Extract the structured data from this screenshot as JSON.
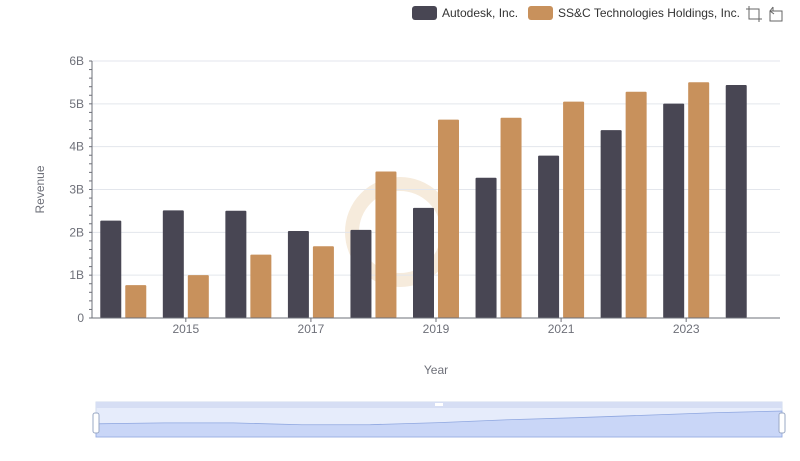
{
  "chart_data": {
    "type": "bar",
    "title": "",
    "xlabel": "Year",
    "ylabel": "Revenue",
    "ylim": [
      0,
      6000000000
    ],
    "y_ticks": [
      "0",
      "1B",
      "2B",
      "3B",
      "4B",
      "5B",
      "6B"
    ],
    "categories": [
      "2014",
      "2015",
      "2016",
      "2017",
      "2018",
      "2019",
      "2020",
      "2021",
      "2022",
      "2023",
      "2024"
    ],
    "x_tick_labels_shown": [
      "2015",
      "2017",
      "2019",
      "2021",
      "2023"
    ],
    "grid": true,
    "legend_position": "top-right",
    "series": [
      {
        "name": "Autodesk, Inc.",
        "color": "#484653",
        "values": [
          2274000000,
          2512000000,
          2504000000,
          2031000000,
          2057000000,
          2570000000,
          3274000000,
          3790000000,
          4386000000,
          5005000000,
          5440000000
        ]
      },
      {
        "name": "SS&C Technologies Holdings, Inc.",
        "color": "#c8915c",
        "values": [
          768000000,
          1000000000,
          1481000000,
          1675000000,
          3421000000,
          4632000000,
          4675000000,
          5051000000,
          5283000000,
          5503000000,
          null
        ]
      }
    ]
  },
  "toolbox": {
    "zoom_icon": "zoom-icon",
    "restore_icon": "restore-icon"
  },
  "datazoom": {
    "range": [
      0,
      100
    ]
  }
}
